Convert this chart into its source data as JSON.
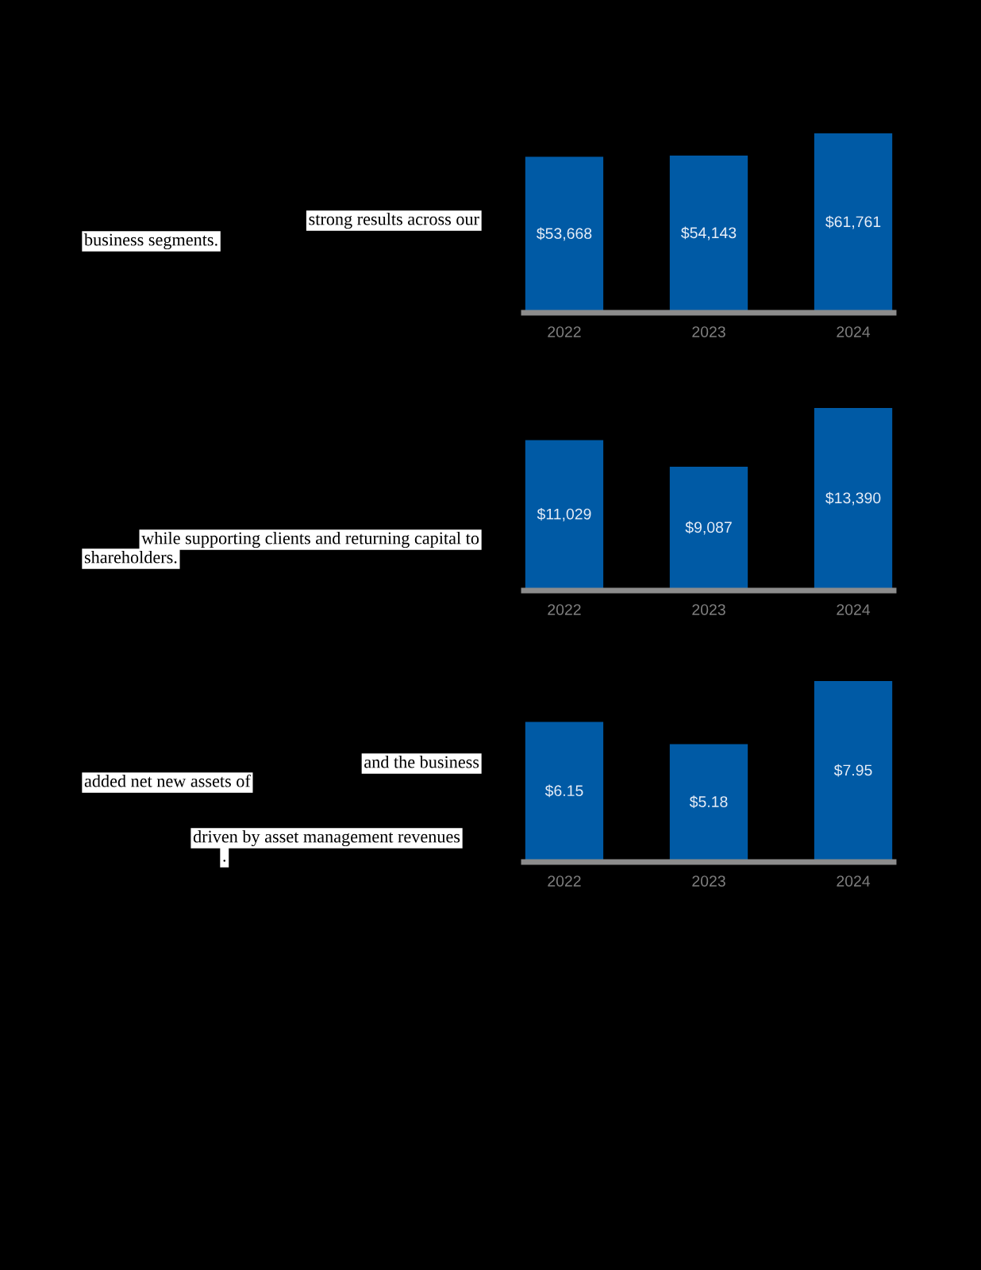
{
  "chart_data": [
    {
      "type": "bar",
      "categories": [
        "2022",
        "2023",
        "2024"
      ],
      "values": [
        53668,
        54143,
        61761
      ],
      "color": "#005aa5",
      "value_labels": [
        "$53,668",
        "$54,143",
        "$61,761"
      ],
      "tick_labels": "x",
      "grid": false,
      "legend": false,
      "annotations": [
        "strong results across our",
        "business segments."
      ]
    },
    {
      "type": "bar",
      "categories": [
        "2022",
        "2023",
        "2024"
      ],
      "values": [
        11029,
        9087,
        13390
      ],
      "color": "#005aa5",
      "value_labels": [
        "$11,029",
        "$9,087",
        "$13,390"
      ],
      "tick_labels": "x",
      "grid": false,
      "legend": false,
      "annotations": [
        "while supporting clients and returning capital to",
        "shareholders."
      ]
    },
    {
      "type": "bar",
      "categories": [
        "2022",
        "2023",
        "2024"
      ],
      "values": [
        6.15,
        5.18,
        7.95
      ],
      "color": "#005aa5",
      "value_labels": [
        "$6.15",
        "$5.18",
        "$7.95"
      ],
      "tick_labels": "x",
      "grid": false,
      "legend": false,
      "annotations": [
        "and the business",
        "added net new assets of",
        "driven by asset management revenues",
        "."
      ]
    }
  ]
}
